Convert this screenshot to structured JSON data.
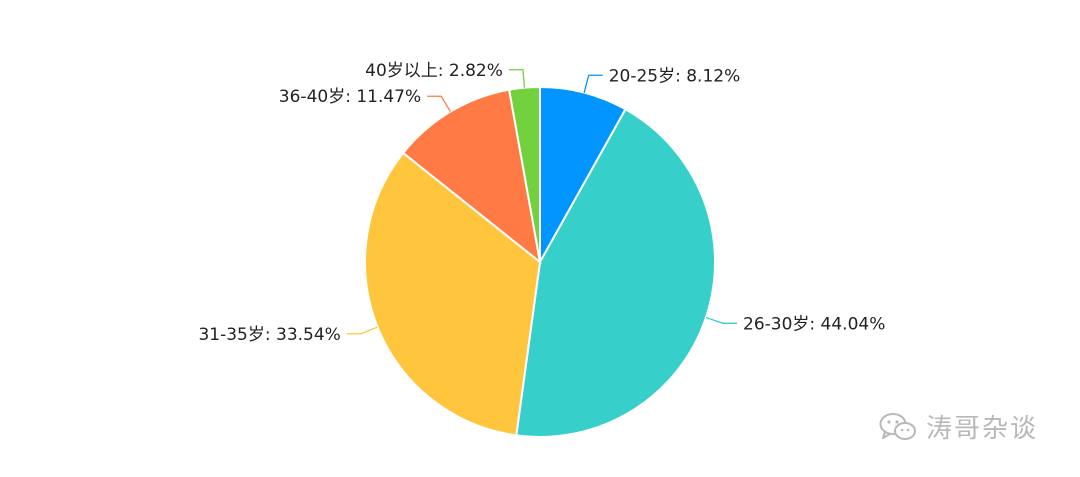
{
  "chart_data": {
    "type": "pie",
    "title": "",
    "slices": [
      {
        "label": "20-25岁",
        "value": 8.12,
        "display": "20-25岁: 8.12%",
        "color": "#0095FF"
      },
      {
        "label": "26-30岁",
        "value": 44.04,
        "display": "26-30岁: 44.04%",
        "color": "#36CFC9"
      },
      {
        "label": "31-35岁",
        "value": 33.54,
        "display": "31-35岁: 33.54%",
        "color": "#FFC53D"
      },
      {
        "label": "36-40岁",
        "value": 11.47,
        "display": "36-40岁: 11.47%",
        "color": "#FF7A45"
      },
      {
        "label": "40岁以上",
        "value": 2.82,
        "display": "40岁以上: 2.82%",
        "color": "#73D13D"
      }
    ]
  },
  "watermark": {
    "text": "涛哥杂谈",
    "icon": "wechat-icon"
  }
}
